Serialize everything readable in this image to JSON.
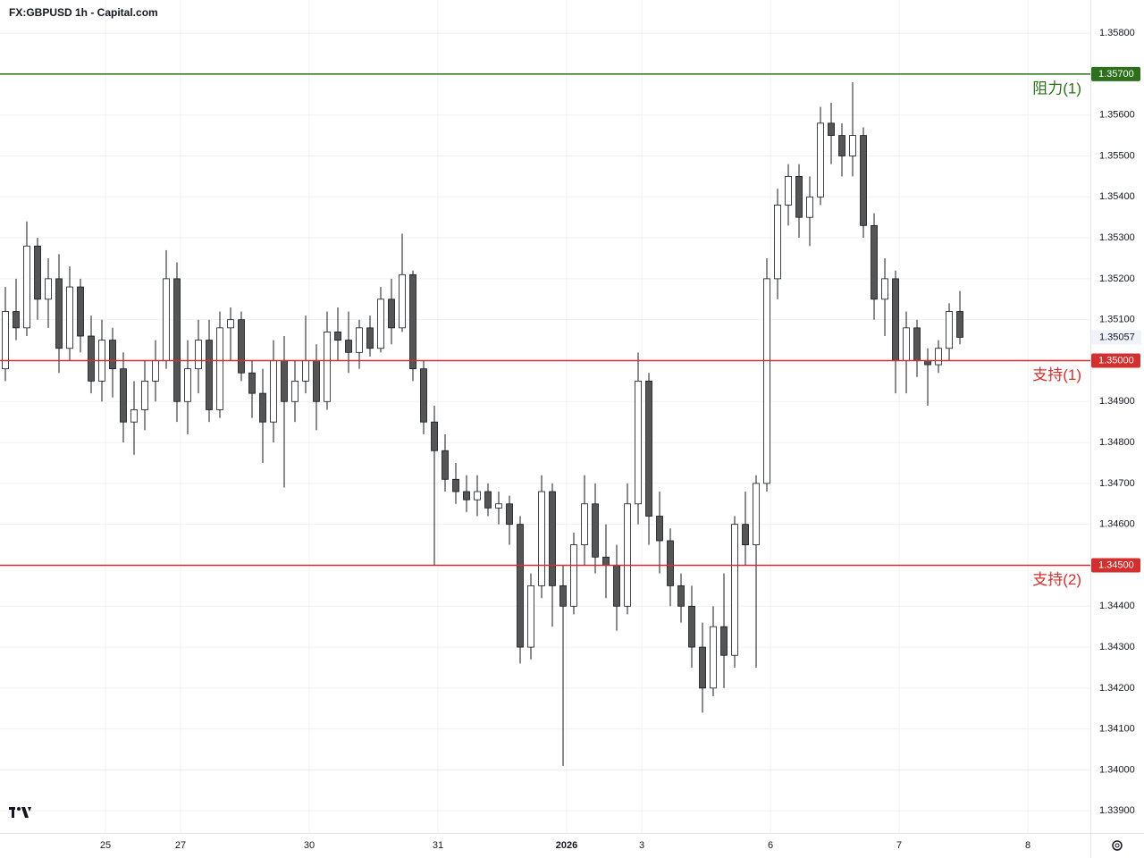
{
  "chart_data": {
    "type": "candlestick",
    "title": "FX:GBPUSD 1h - Capital.com",
    "x": [
      1,
      3,
      5,
      7,
      9,
      11,
      13,
      15,
      17,
      19,
      21,
      23,
      25,
      27,
      29,
      31,
      33,
      35,
      37,
      39,
      41,
      43,
      45,
      47,
      49,
      51,
      53,
      55,
      57,
      59,
      61,
      63,
      65,
      67,
      69,
      71,
      73,
      75,
      77,
      79,
      81,
      83,
      85,
      87,
      89,
      91,
      93,
      95,
      97,
      99,
      101,
      103,
      105,
      107,
      109,
      111,
      113,
      115,
      117,
      119,
      121,
      123,
      125,
      127,
      129,
      131,
      133,
      135,
      137,
      139,
      141,
      143,
      145,
      147,
      149,
      151,
      153,
      155,
      157,
      159,
      161,
      163,
      165,
      167,
      169,
      171,
      173,
      175,
      177,
      179
    ],
    "open": [
      1.3498,
      1.3512,
      1.3508,
      1.3528,
      1.3515,
      1.352,
      1.3503,
      1.3518,
      1.3506,
      1.3495,
      1.3505,
      1.3498,
      1.3485,
      1.3488,
      1.3495,
      1.35,
      1.352,
      1.349,
      1.3498,
      1.3505,
      1.3488,
      1.3508,
      1.351,
      1.3497,
      1.3492,
      1.3485,
      1.35,
      1.349,
      1.3495,
      1.35,
      1.349,
      1.3507,
      1.3505,
      1.3502,
      1.3508,
      1.3503,
      1.3515,
      1.3508,
      1.3521,
      1.3498,
      1.3485,
      1.3478,
      1.3471,
      1.3468,
      1.3466,
      1.3468,
      1.3464,
      1.3465,
      1.346,
      1.343,
      1.3445,
      1.3468,
      1.3445,
      1.344,
      1.3455,
      1.3465,
      1.3452,
      1.345,
      1.344,
      1.3465,
      1.3495,
      1.3462,
      1.3456,
      1.3445,
      1.344,
      1.343,
      1.342,
      1.3435,
      1.3428,
      1.346,
      1.3455,
      1.347,
      1.352,
      1.3538,
      1.3545,
      1.3535,
      1.354,
      1.3558,
      1.3555,
      1.355,
      1.3555,
      1.3533,
      1.3515,
      1.352,
      1.35,
      1.3508,
      1.35,
      1.3499,
      1.3503,
      1.3512
    ],
    "high": [
      1.3518,
      1.352,
      1.3534,
      1.353,
      1.3525,
      1.3526,
      1.3523,
      1.352,
      1.3511,
      1.351,
      1.3508,
      1.3502,
      1.3495,
      1.35,
      1.3505,
      1.3527,
      1.3524,
      1.3505,
      1.351,
      1.351,
      1.3512,
      1.3513,
      1.3512,
      1.35,
      1.3498,
      1.3505,
      1.3506,
      1.35,
      1.3511,
      1.3504,
      1.3512,
      1.3513,
      1.3512,
      1.351,
      1.3511,
      1.3518,
      1.352,
      1.3531,
      1.3522,
      1.35,
      1.3489,
      1.3482,
      1.3475,
      1.3472,
      1.3472,
      1.347,
      1.3468,
      1.3467,
      1.3462,
      1.3448,
      1.3472,
      1.347,
      1.345,
      1.3458,
      1.3472,
      1.347,
      1.346,
      1.3455,
      1.347,
      1.3502,
      1.3497,
      1.3468,
      1.3459,
      1.3448,
      1.3445,
      1.3436,
      1.344,
      1.3448,
      1.3462,
      1.3468,
      1.3472,
      1.3525,
      1.3542,
      1.3548,
      1.3548,
      1.3545,
      1.3562,
      1.3563,
      1.3558,
      1.3568,
      1.3557,
      1.3536,
      1.3525,
      1.3522,
      1.3512,
      1.351,
      1.3503,
      1.3505,
      1.3514,
      1.3517
    ],
    "low": [
      1.3495,
      1.3505,
      1.3506,
      1.351,
      1.3508,
      1.3497,
      1.35,
      1.3502,
      1.3492,
      1.349,
      1.3491,
      1.348,
      1.3477,
      1.3483,
      1.349,
      1.3498,
      1.3485,
      1.3482,
      1.3492,
      1.3485,
      1.3486,
      1.35,
      1.3495,
      1.3486,
      1.3475,
      1.348,
      1.3469,
      1.3485,
      1.3492,
      1.3483,
      1.3488,
      1.35,
      1.3497,
      1.3498,
      1.3501,
      1.3502,
      1.3504,
      1.3507,
      1.3495,
      1.3482,
      1.345,
      1.3468,
      1.3465,
      1.3463,
      1.3462,
      1.3462,
      1.346,
      1.3455,
      1.3426,
      1.3427,
      1.3442,
      1.3435,
      1.3401,
      1.3438,
      1.345,
      1.3448,
      1.3442,
      1.3434,
      1.3438,
      1.346,
      1.3455,
      1.3448,
      1.344,
      1.3436,
      1.3425,
      1.3414,
      1.3418,
      1.342,
      1.3425,
      1.345,
      1.3425,
      1.3468,
      1.3515,
      1.3533,
      1.353,
      1.3528,
      1.3538,
      1.3548,
      1.3545,
      1.3545,
      1.353,
      1.351,
      1.3506,
      1.3492,
      1.3492,
      1.3496,
      1.3489,
      1.3497,
      1.35,
      1.3504
    ],
    "close": [
      1.3512,
      1.3508,
      1.3528,
      1.3515,
      1.352,
      1.3503,
      1.3518,
      1.3506,
      1.3495,
      1.3505,
      1.3498,
      1.3485,
      1.3488,
      1.3495,
      1.35,
      1.352,
      1.349,
      1.3498,
      1.3505,
      1.3488,
      1.3508,
      1.351,
      1.3497,
      1.3492,
      1.3485,
      1.35,
      1.349,
      1.3495,
      1.35,
      1.349,
      1.3507,
      1.3505,
      1.3502,
      1.3508,
      1.3503,
      1.3515,
      1.3508,
      1.3521,
      1.3498,
      1.3485,
      1.3478,
      1.3471,
      1.3468,
      1.3466,
      1.3468,
      1.3464,
      1.3465,
      1.346,
      1.343,
      1.3445,
      1.3468,
      1.3445,
      1.344,
      1.3455,
      1.3465,
      1.3452,
      1.345,
      1.344,
      1.3465,
      1.3495,
      1.3462,
      1.3456,
      1.3445,
      1.344,
      1.343,
      1.342,
      1.3435,
      1.3428,
      1.346,
      1.3455,
      1.347,
      1.352,
      1.3538,
      1.3545,
      1.3535,
      1.354,
      1.3558,
      1.3555,
      1.355,
      1.3555,
      1.3533,
      1.3515,
      1.352,
      1.35,
      1.3508,
      1.35,
      1.3499,
      1.3503,
      1.3512,
      1.35057
    ],
    "up_color": "#ffffff",
    "down_color": "#555555",
    "xlim": [
      0,
      203.33
    ],
    "xticks": [
      {
        "value": 19.67,
        "label": "25"
      },
      {
        "value": 33.67,
        "label": "27"
      },
      {
        "value": 57.67,
        "label": "30"
      },
      {
        "value": 81.67,
        "label": "31"
      },
      {
        "value": 105.67,
        "label": "2026"
      },
      {
        "value": 119.67,
        "label": "3"
      },
      {
        "value": 143.67,
        "label": "6"
      },
      {
        "value": 167.67,
        "label": "7"
      },
      {
        "value": 191.67,
        "label": "8"
      }
    ],
    "ylim": [
      1.33846,
      1.35881
    ],
    "yticks": [
      {
        "value": 1.339,
        "label": "1.33900"
      },
      {
        "value": 1.34,
        "label": "1.34000"
      },
      {
        "value": 1.341,
        "label": "1.34100"
      },
      {
        "value": 1.342,
        "label": "1.34200"
      },
      {
        "value": 1.343,
        "label": "1.34300"
      },
      {
        "value": 1.344,
        "label": "1.34400"
      },
      {
        "value": 1.346,
        "label": "1.34600"
      },
      {
        "value": 1.347,
        "label": "1.34700"
      },
      {
        "value": 1.348,
        "label": "1.34800"
      },
      {
        "value": 1.349,
        "label": "1.34900"
      },
      {
        "value": 1.351,
        "label": "1.35100"
      },
      {
        "value": 1.352,
        "label": "1.35200"
      },
      {
        "value": 1.353,
        "label": "1.35300"
      },
      {
        "value": 1.354,
        "label": "1.35400"
      },
      {
        "value": 1.355,
        "label": "1.35500"
      },
      {
        "value": 1.356,
        "label": "1.35600"
      },
      {
        "value": 1.358,
        "label": "1.35800"
      }
    ],
    "grid": true,
    "levels": [
      {
        "name": "阻力(1)",
        "price": 1.357,
        "price_label": "1.35700",
        "color": "#2e6f1c"
      },
      {
        "name": "支持(1)",
        "price": 1.35,
        "price_label": "1.35000",
        "color": "#d32f2f"
      },
      {
        "name": "支持(2)",
        "price": 1.345,
        "price_label": "1.34500",
        "color": "#d32f2f"
      }
    ]
  }
}
